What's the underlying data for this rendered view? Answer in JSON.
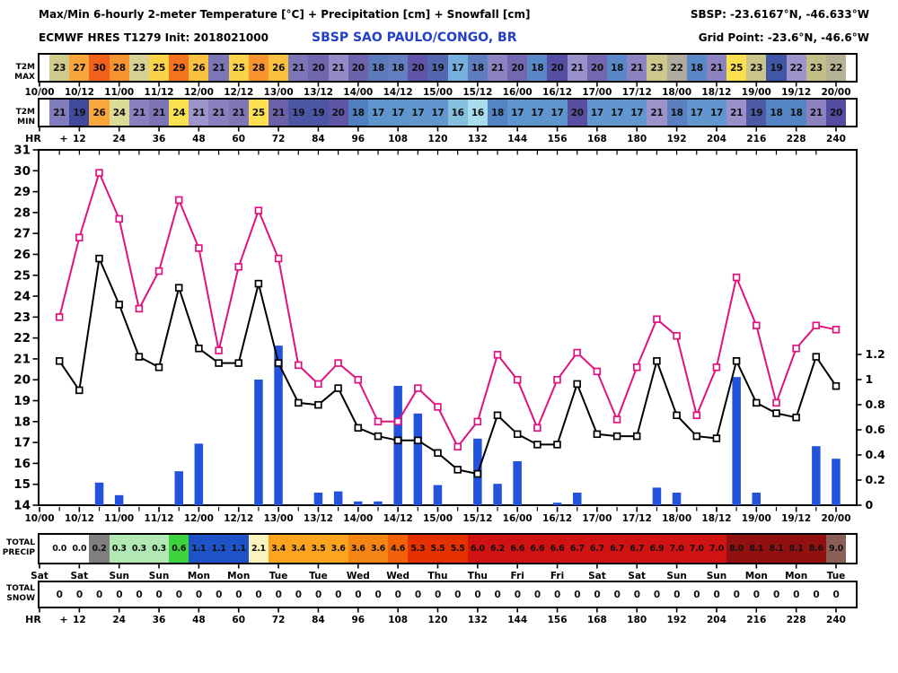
{
  "header": {
    "title": "Max/Min 6-hourly 2-meter Temperature [°C] + Precipitation [cm] + Snowfall [cm]",
    "station_coords": "SBSP: -23.6167°N, -46.633°W",
    "model_init": "ECMWF HRES T1279 Init: 2018021000",
    "station_name": "SBSP SAO PAULO/CONGO, BR",
    "grid_point": "Grid Point: -23.6°N, -46.6°W",
    "station_color": "#2340C8"
  },
  "strips": {
    "t2m_max": {
      "label": "T2M MAX",
      "values": [
        23,
        27,
        30,
        28,
        23,
        25,
        29,
        26,
        21,
        25,
        28,
        26,
        21,
        20,
        21,
        20,
        18,
        18,
        20,
        19,
        17,
        18,
        21,
        20,
        18,
        20,
        21,
        20,
        18,
        21,
        23,
        22,
        18,
        21,
        25,
        23,
        19,
        22,
        23,
        22
      ],
      "colors": [
        "#CFCB8D",
        "#F9A53C",
        "#F1611B",
        "#F8942F",
        "#D6D293",
        "#FBD349",
        "#F4731F",
        "#FAC13E",
        "#7C75B6",
        "#FBD349",
        "#F8942F",
        "#FAC13E",
        "#7C75B6",
        "#6F66AD",
        "#938AC6",
        "#6B63AC",
        "#5C79BA",
        "#637FC0",
        "#5F55A8",
        "#5366AE",
        "#74AFDE",
        "#5E7EC0",
        "#8C84C1",
        "#7168AF",
        "#5987C7",
        "#564EA2",
        "#9991CA",
        "#7168AF",
        "#5987C7",
        "#8C84C1",
        "#CCC88B",
        "#AEAB9E",
        "#5987C7",
        "#8C84C1",
        "#FCDF4E",
        "#C9C58A",
        "#4056A6",
        "#9C94CB",
        "#C3BF86",
        "#B5B295"
      ]
    },
    "t2m_min": {
      "label": "T2M MIN",
      "values": [
        21,
        19,
        26,
        24,
        21,
        21,
        24,
        21,
        21,
        21,
        25,
        21,
        19,
        19,
        20,
        18,
        17,
        17,
        17,
        17,
        16,
        16,
        18,
        17,
        17,
        17,
        20,
        17,
        17,
        17,
        21,
        18,
        17,
        17,
        21,
        19,
        18,
        18,
        21,
        20
      ],
      "colors": [
        "#817CBB",
        "#3F4A9C",
        "#F9A63B",
        "#DDDC96",
        "#8A80BF",
        "#7D74B5",
        "#FBE04F",
        "#9D94CC",
        "#8A80BF",
        "#7F76B8",
        "#FCE04F",
        "#6A61A9",
        "#4B57A5",
        "#4B57A5",
        "#5F56A6",
        "#5080C0",
        "#5E95CD",
        "#5E95CD",
        "#6197CE",
        "#6197CE",
        "#85C0DF",
        "#A9DDEE",
        "#5584C4",
        "#5E95CD",
        "#5E95CD",
        "#5E95CD",
        "#584FA1",
        "#6197CE",
        "#6197CE",
        "#6197CE",
        "#9C93CB",
        "#5A80C0",
        "#6197CE",
        "#6197CE",
        "#9A90CA",
        "#4C5AA7",
        "#5584C4",
        "#5584C4",
        "#8C82C0",
        "#544CA0"
      ]
    },
    "precip": {
      "label_line1": "TOTAL",
      "label_line2": "PRECIP",
      "values": [
        "0.0",
        "0.0",
        "0.2",
        "0.3",
        "0.3",
        "0.3",
        "0.6",
        "1.1",
        "1.1",
        "1.1",
        "2.1",
        "3.4",
        "3.4",
        "3.5",
        "3.6",
        "3.6",
        "3.6",
        "4.6",
        "5.3",
        "5.5",
        "5.5",
        "6.0",
        "6.2",
        "6.6",
        "6.6",
        "6.6",
        "6.7",
        "6.7",
        "6.7",
        "6.7",
        "6.9",
        "7.0",
        "7.0",
        "7.0",
        "8.0",
        "8.1",
        "8.1",
        "8.1",
        "8.6",
        "9.0"
      ],
      "colors": [
        "#FFFFFF",
        "#FFFFFF",
        "#7F7F7F",
        "#B2E9B2",
        "#B2E9B2",
        "#B2E9B2",
        "#3FD23F",
        "#1E53C8",
        "#1E53C8",
        "#1E53C8",
        "#FCF4BE",
        "#FCA41E",
        "#FCA41E",
        "#FCA41E",
        "#FCA41E",
        "#F58614",
        "#F58614",
        "#F2600A",
        "#E53000",
        "#E53000",
        "#E53000",
        "#D11212",
        "#D11212",
        "#D11212",
        "#D11212",
        "#D11212",
        "#D11212",
        "#D11212",
        "#D11212",
        "#D11212",
        "#D11212",
        "#D11212",
        "#D11212",
        "#D11212",
        "#931010",
        "#931010",
        "#931010",
        "#931010",
        "#931010",
        "#8A5F55"
      ]
    },
    "snow": {
      "label_line1": "TOTAL",
      "label_line2": "SNOW",
      "values": [
        "0",
        "0",
        "0",
        "0",
        "0",
        "0",
        "0",
        "0",
        "0",
        "0",
        "0",
        "0",
        "0",
        "0",
        "0",
        "0",
        "0",
        "0",
        "0",
        "0",
        "0",
        "0",
        "0",
        "0",
        "0",
        "0",
        "0",
        "0",
        "0",
        "0",
        "0",
        "0",
        "0",
        "0",
        "0",
        "0",
        "0",
        "0",
        "0",
        "0"
      ]
    }
  },
  "timeline": {
    "dates": [
      "10/00",
      "10/12",
      "11/00",
      "11/12",
      "12/00",
      "12/12",
      "13/00",
      "13/12",
      "14/00",
      "14/12",
      "15/00",
      "15/12",
      "16/00",
      "16/12",
      "17/00",
      "17/12",
      "18/00",
      "18/12",
      "19/00",
      "19/12",
      "20/00"
    ],
    "days": [
      "Sat",
      "Sat",
      "Sun",
      "Sun",
      "Mon",
      "Mon",
      "Tue",
      "Tue",
      "Wed",
      "Wed",
      "Thu",
      "Thu",
      "Fri",
      "Fri",
      "Sat",
      "Sat",
      "Sun",
      "Sun",
      "Mon",
      "Mon",
      "Tue"
    ],
    "hr_label": "HR",
    "hr_plus": "+",
    "hours": [
      "12",
      "24",
      "36",
      "48",
      "60",
      "72",
      "84",
      "96",
      "108",
      "120",
      "132",
      "144",
      "156",
      "168",
      "180",
      "192",
      "204",
      "216",
      "228",
      "240"
    ]
  },
  "chart_data": {
    "type": "line+bar",
    "x_hours": [
      6,
      12,
      18,
      24,
      30,
      36,
      42,
      48,
      54,
      60,
      66,
      72,
      78,
      84,
      90,
      96,
      102,
      108,
      114,
      120,
      126,
      132,
      138,
      144,
      150,
      156,
      162,
      168,
      174,
      180,
      186,
      192,
      198,
      204,
      210,
      216,
      222,
      228,
      234,
      240
    ],
    "series": [
      {
        "name": "t2m-max-6h-degC",
        "color": "#E0127F",
        "values": [
          23.0,
          26.8,
          29.9,
          27.7,
          23.4,
          25.2,
          28.6,
          26.3,
          21.4,
          25.4,
          28.1,
          25.8,
          20.7,
          19.8,
          20.8,
          20.0,
          18.0,
          18.0,
          19.6,
          18.7,
          16.8,
          18.0,
          21.2,
          20.0,
          17.7,
          20.0,
          21.3,
          20.4,
          18.1,
          20.6,
          22.9,
          22.1,
          18.3,
          20.6,
          24.9,
          22.6,
          18.9,
          21.5,
          22.6,
          22.4
        ]
      },
      {
        "name": "t2m-min-6h-degC",
        "color": "#000000",
        "values": [
          20.9,
          19.5,
          25.8,
          23.6,
          21.1,
          20.6,
          24.4,
          21.5,
          20.8,
          20.8,
          24.6,
          20.8,
          18.9,
          18.8,
          19.6,
          17.7,
          17.3,
          17.1,
          17.1,
          16.5,
          15.7,
          15.5,
          18.3,
          17.4,
          16.9,
          16.9,
          19.8,
          17.4,
          17.3,
          17.3,
          20.9,
          18.3,
          17.3,
          17.2,
          20.9,
          18.9,
          18.4,
          18.2,
          21.1,
          19.7
        ]
      }
    ],
    "bars": {
      "name": "precip-6h-cm",
      "color": "#2352DC",
      "values": [
        0,
        0,
        0.18,
        0.08,
        0,
        0,
        0.27,
        0.49,
        0,
        0,
        1.0,
        1.27,
        0,
        0.1,
        0.11,
        0.03,
        0.03,
        0.95,
        0.73,
        0.16,
        0,
        0.53,
        0.17,
        0.35,
        0,
        0.02,
        0.1,
        0,
        0,
        0,
        0.14,
        0.1,
        0,
        0,
        1.02,
        0.1,
        0,
        0,
        0.47,
        0.37
      ]
    },
    "left_axis": {
      "label": "°C",
      "min": 14,
      "max": 31,
      "step": 1
    },
    "right_axis": {
      "label": "cm",
      "ticks": [
        0,
        0.2,
        0.4,
        0.6,
        0.8,
        1,
        1.2
      ],
      "tick_labels": [
        "0",
        "0.2",
        "0.4",
        "0.6",
        "0.8",
        "1",
        "1.2"
      ]
    },
    "x_tick_step_hours": 12,
    "x_minor_step_hours": 6,
    "grid": false,
    "legend": "none"
  }
}
